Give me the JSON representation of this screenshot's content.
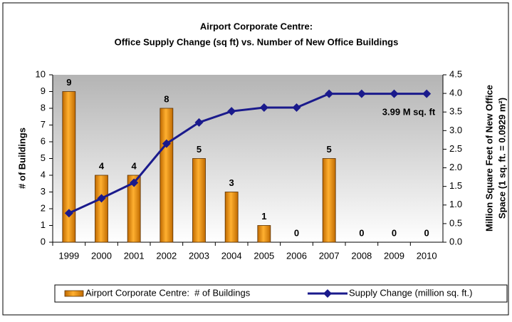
{
  "chart_data": {
    "type": "bar_line",
    "title": "Airport Corporate Centre:",
    "subtitle": "Office Supply Change (sq ft) vs. Number of New Office Buildings",
    "ylabel": "# of Buildings",
    "y2label": [
      "Million Square Feet of New Office",
      "Space (1 sq. ft. = 0.0929 m²)"
    ],
    "categories": [
      "1999",
      "2000",
      "2001",
      "2002",
      "2003",
      "2004",
      "2005",
      "2006",
      "2007",
      "2008",
      "2009",
      "2010"
    ],
    "series": [
      {
        "name": "Airport Corporate Centre:  # of Buildings",
        "type": "bar",
        "color": "#e8900c",
        "values": [
          9,
          4,
          4,
          8,
          5,
          3,
          1,
          0,
          5,
          0,
          0,
          0
        ]
      },
      {
        "name": "Supply Change (million sq. ft.)",
        "type": "line",
        "axis": "y2",
        "color": "#1a1a8c",
        "values": [
          0.78,
          1.18,
          1.6,
          2.65,
          3.22,
          3.52,
          3.62,
          3.62,
          3.99,
          3.99,
          3.99,
          3.99
        ]
      }
    ],
    "ylim": [
      0,
      10
    ],
    "yticks": [
      0,
      1,
      2,
      3,
      4,
      5,
      6,
      7,
      8,
      9,
      10
    ],
    "y2lim": [
      0,
      4.5
    ],
    "y2ticks": [
      {
        "value": 0,
        "label": "0.0"
      },
      0.5,
      {
        "value": 1,
        "label": "1.0"
      },
      1.5,
      {
        "value": 2,
        "label": "2.0"
      },
      2.5,
      {
        "value": 3,
        "label": "3.0"
      },
      3.5,
      {
        "value": 4,
        "label": "4.0"
      },
      4.5
    ],
    "annotation": "3.99 M sq. ft",
    "legend": "bottom"
  }
}
